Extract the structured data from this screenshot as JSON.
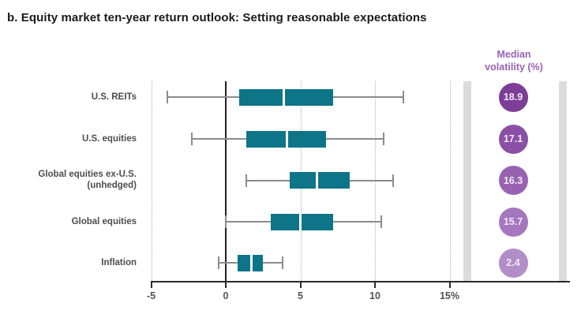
{
  "title": "b. Equity market ten-year return outlook: Setting reasonable expectations",
  "volatility_column": {
    "header": "Median\nvolatility (%)",
    "header_color": "#9b5fb5"
  },
  "colors": {
    "box_fill": "#0e7487",
    "median_line": "#ffffff",
    "whisker": "#8c8c8c",
    "zero_line": "#231f20",
    "gridline": "#aeaeae",
    "axis": "#2b2b2b",
    "side_band": "#dcdcdc",
    "tick_label": "#4f5254",
    "row_label": "#4d4d4f"
  },
  "chart_data": {
    "type": "boxplot",
    "title": "b. Equity market ten-year return outlook: Setting reasonable expectations",
    "orientation": "horizontal",
    "xlim": [
      -5,
      23
    ],
    "grid": "dotted vertical at labeled ticks, solid black line at 0",
    "x_ticks": [
      {
        "value": -5,
        "label": "-5"
      },
      {
        "value": 0,
        "label": "0"
      },
      {
        "value": 5,
        "label": "5"
      },
      {
        "value": 10,
        "label": "10"
      },
      {
        "value": 15,
        "label": "15%"
      }
    ],
    "categories": [
      "U.S. REITs",
      "U.S. equities",
      "Global equities ex-U.S. (unhedged)",
      "Global equities",
      "Inflation"
    ],
    "series": [
      {
        "label": "U.S. REITs",
        "label2": "",
        "min": -3.9,
        "q1": 0.9,
        "median": 3.9,
        "q3": 7.2,
        "max": 11.9,
        "median_volatility": "18.9",
        "circle_color": "#7c3e98"
      },
      {
        "label": "U.S. equities",
        "label2": "",
        "min": -2.3,
        "q1": 1.4,
        "median": 4.1,
        "q3": 6.7,
        "max": 10.6,
        "median_volatility": "17.1",
        "circle_color": "#8a50a5"
      },
      {
        "label": "Global equities ex-U.S.",
        "label2": "(unhedged)",
        "min": 1.4,
        "q1": 4.3,
        "median": 6.1,
        "q3": 8.3,
        "max": 11.2,
        "median_volatility": "16.3",
        "circle_color": "#9763b1"
      },
      {
        "label": "Global equities",
        "label2": "",
        "min": 0.0,
        "q1": 3.0,
        "median": 5.0,
        "q3": 7.2,
        "max": 10.4,
        "median_volatility": "15.7",
        "circle_color": "#a577be"
      },
      {
        "label": "Inflation",
        "label2": "",
        "min": -0.5,
        "q1": 0.8,
        "median": 1.7,
        "q3": 2.5,
        "max": 3.8,
        "median_volatility": "2.4",
        "circle_color": "#b28dc8"
      }
    ]
  }
}
